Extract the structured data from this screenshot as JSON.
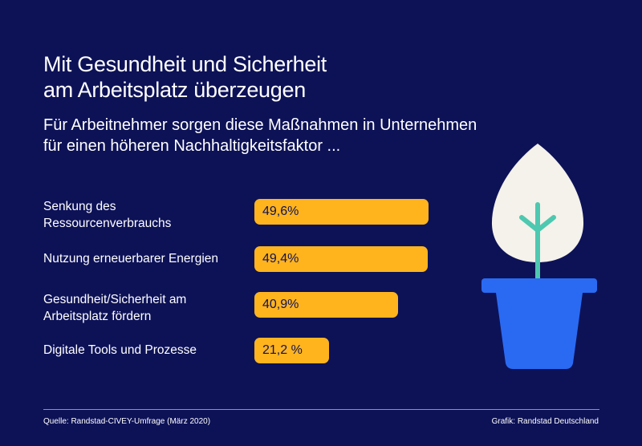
{
  "title": "Mit Gesundheit und Sicherheit\nam Arbeitsplatz überzeugen",
  "subtitle": "Für Arbeitnehmer sorgen diese Maßnahmen in Unternehmen\nfür einen höheren Nachhaltigkeitsfaktor ...",
  "chart_data": {
    "type": "bar",
    "orientation": "horizontal",
    "categories": [
      "Senkung des\nRessourcenverbrauchs",
      "Nutzung erneuerbarer Energien",
      "Gesundheit/Sicherheit am\nArbeitsplatz fördern",
      "Digitale Tools und Prozesse"
    ],
    "values": [
      49.6,
      49.4,
      40.9,
      21.2
    ],
    "value_labels": [
      "49,6%",
      "49,4%",
      "40,9%",
      "21,2 %"
    ],
    "xlim": [
      0,
      100
    ],
    "grid": false,
    "legend": "none",
    "bar_color": "#ffb41e"
  },
  "footer": {
    "source": "Quelle: Randstad-CIVEY-Umfrage (März 2020)",
    "credit": "Grafik: Randstad Deutschland"
  },
  "colors": {
    "background": "#0d1257",
    "bar": "#ffb41e",
    "pot": "#2a6af2",
    "leaf": "#f4f2ea",
    "stem": "#4ec8b0"
  },
  "icons": {
    "illustration": "potted-plant-icon"
  }
}
